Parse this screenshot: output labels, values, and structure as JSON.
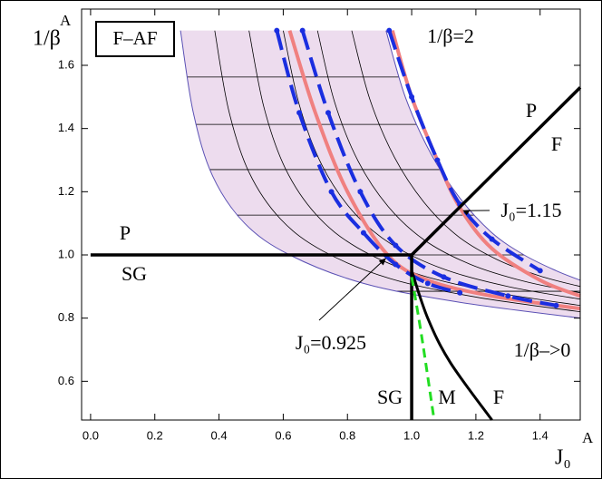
{
  "chart_data": {
    "type": "line",
    "xlabel": "J₀",
    "xlabel_superscript": "A",
    "ylabel": "1/β",
    "ylabel_superscript": "A",
    "legend_box": "F–AF",
    "xlim": [
      -0.028,
      1.525
    ],
    "ylim": [
      0.4775,
      1.778
    ],
    "xticks": [
      {
        "value": 0,
        "label": "0.0"
      },
      0.2,
      0.4,
      0.6,
      0.8,
      {
        "value": 1,
        "label": "1.0"
      },
      1.2,
      1.4
    ],
    "yticks": [
      0.6,
      0.8,
      {
        "value": 1,
        "label": "1.0"
      },
      1.2,
      1.4,
      1.6
    ],
    "region": {
      "fill": "#eddcee",
      "edge": "#5a50b4",
      "left": {
        "x": [
          0.28,
          0.32,
          0.38,
          0.48,
          0.62,
          0.85,
          1.15,
          1.525
        ],
        "y": [
          1.71,
          1.45,
          1.25,
          1.1,
          1.0,
          0.91,
          0.85,
          0.8
        ]
      },
      "right": {
        "x": [
          0.92,
          0.98,
          1.06,
          1.15,
          1.25,
          1.35,
          1.45,
          1.525
        ],
        "y": [
          1.71,
          1.5,
          1.32,
          1.18,
          1.07,
          1.0,
          0.95,
          0.92
        ]
      },
      "rows": [
        1.563,
        1.413,
        1.27,
        1.126,
        1.0,
        0.885
      ]
    },
    "series": [
      {
        "color": "#f08080",
        "width": 4,
        "style": "solid",
        "x": [
          0.62,
          0.7,
          0.8,
          0.925,
          1.05,
          1.25,
          1.525
        ],
        "values": [
          1.71,
          1.45,
          1.2,
          1.0,
          0.92,
          0.87,
          0.83
        ]
      },
      {
        "color": "#f08080",
        "width": 4,
        "style": "solid",
        "x": [
          0.94,
          1.0,
          1.08,
          1.15,
          1.25,
          1.4,
          1.525
        ],
        "values": [
          1.71,
          1.5,
          1.3,
          1.15,
          1.02,
          0.92,
          0.87
        ]
      },
      {
        "color": "#1a2ee0",
        "width": 4,
        "style": "dashed",
        "markers": true,
        "x": [
          0.58,
          0.65,
          0.75,
          0.85,
          0.95,
          1.05,
          1.15
        ],
        "values": [
          1.71,
          1.45,
          1.2,
          1.07,
          0.97,
          0.91,
          0.88
        ]
      },
      {
        "color": "#1a2ee0",
        "width": 4,
        "style": "dashed",
        "markers": true,
        "x": [
          0.66,
          0.74,
          0.84,
          0.95,
          1.1,
          1.3,
          1.45
        ],
        "values": [
          1.71,
          1.45,
          1.2,
          1.03,
          0.93,
          0.87,
          0.84
        ]
      },
      {
        "color": "#1a2ee0",
        "width": 4,
        "style": "dashed",
        "markers": true,
        "x": [
          0.93,
          1.0,
          1.08,
          1.15,
          1.25,
          1.4
        ],
        "values": [
          1.71,
          1.5,
          1.3,
          1.16,
          1.05,
          0.95
        ]
      },
      {
        "color": "#000000",
        "width": 3.5,
        "style": "solid",
        "x": [
          0,
          1
        ],
        "values": [
          1,
          1
        ]
      },
      {
        "color": "#000000",
        "width": 3.5,
        "style": "solid",
        "x": [
          1,
          1.525
        ],
        "values": [
          1,
          1.53
        ]
      },
      {
        "color": "#000000",
        "width": 3.5,
        "style": "solid",
        "x": [
          1,
          1
        ],
        "values": [
          1,
          0.4775
        ]
      },
      {
        "color": "#000000",
        "width": 3,
        "style": "solid",
        "x": [
          1,
          1.05,
          1.12,
          1.25
        ],
        "values": [
          0.95,
          0.8,
          0.66,
          0.4775
        ]
      },
      {
        "color": "#22dd22",
        "width": 3,
        "style": "dashed",
        "x": [
          1,
          1.03,
          1.07
        ],
        "values": [
          0.93,
          0.75,
          0.4775
        ]
      }
    ],
    "annotations": [
      "P",
      "SG",
      "P",
      "F",
      "SG",
      "M",
      "F",
      "1/β=2",
      "1/β–>0",
      "J₀=1.15",
      "J₀=0.925"
    ]
  }
}
